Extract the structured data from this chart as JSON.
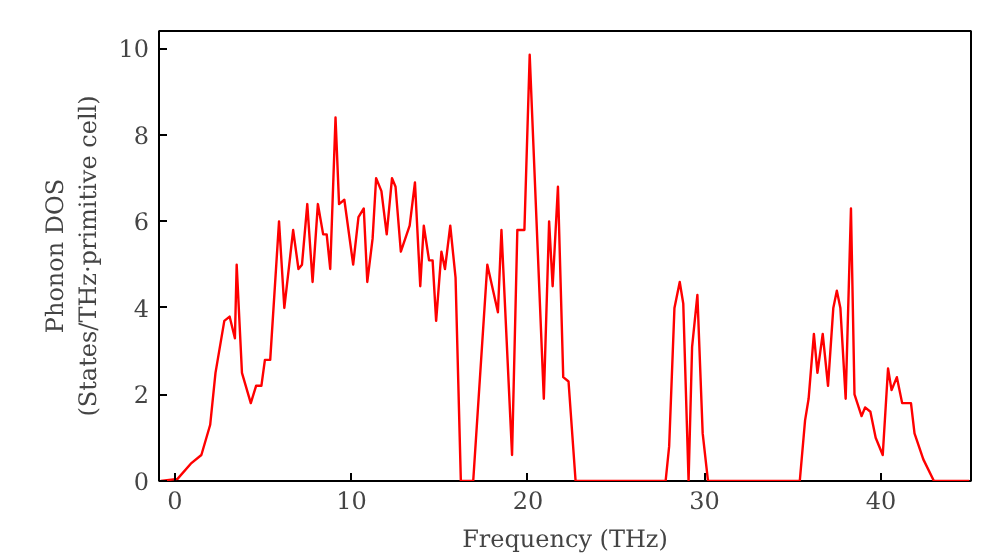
{
  "chart_data": {
    "type": "line",
    "xlabel": "Frequency (THz)",
    "ylabel": "Phonon DOS\n(States/THz·primitive cell)",
    "xlim": [
      -0.9,
      45.1
    ],
    "ylim": [
      0,
      10.4
    ],
    "xticks": [
      0,
      10,
      20,
      30,
      40
    ],
    "yticks": [
      0,
      2,
      4,
      6,
      8,
      10
    ],
    "grid": false,
    "series": [
      {
        "color": "#ff0000",
        "x": [
          -0.8,
          0.15,
          0.9,
          1.5,
          2.0,
          2.3,
          2.8,
          3.1,
          3.4,
          3.5,
          3.8,
          4.3,
          4.6,
          4.9,
          5.1,
          5.4,
          5.9,
          6.2,
          6.7,
          7.0,
          7.2,
          7.5,
          7.8,
          8.1,
          8.4,
          8.6,
          8.8,
          9.1,
          9.3,
          9.6,
          10.1,
          10.4,
          10.7,
          10.9,
          11.2,
          11.4,
          11.7,
          12.0,
          12.3,
          12.5,
          12.8,
          13.3,
          13.6,
          13.9,
          14.1,
          14.4,
          14.6,
          14.8,
          15.1,
          15.3,
          15.6,
          15.9,
          16.2,
          16.9,
          17.7,
          18.3,
          18.5,
          19.1,
          19.4,
          19.8,
          20.1,
          20.9,
          21.2,
          21.4,
          21.7,
          22.0,
          22.3,
          22.7,
          27.8,
          28.0,
          28.3,
          28.6,
          28.8,
          29.1,
          29.3,
          29.6,
          29.9,
          30.2,
          35.4,
          35.7,
          35.9,
          36.2,
          36.4,
          36.7,
          37.0,
          37.3,
          37.5,
          37.7,
          38.0,
          38.3,
          38.5,
          38.9,
          39.1,
          39.4,
          39.7,
          40.1,
          40.4,
          40.6,
          40.9,
          41.2,
          41.7,
          41.9,
          42.4,
          43.0,
          45.0
        ],
        "values": [
          0,
          0.05,
          0.4,
          0.6,
          1.3,
          2.5,
          3.7,
          3.8,
          3.3,
          5.0,
          2.5,
          1.8,
          2.2,
          2.2,
          2.8,
          2.8,
          6.0,
          4.0,
          5.8,
          4.9,
          5.0,
          6.4,
          4.6,
          6.4,
          5.7,
          5.7,
          4.9,
          8.4,
          6.4,
          6.5,
          5.0,
          6.1,
          6.3,
          4.6,
          5.6,
          7.0,
          6.7,
          5.7,
          7.0,
          6.8,
          5.3,
          5.9,
          6.9,
          4.5,
          5.9,
          5.1,
          5.1,
          3.7,
          5.3,
          4.9,
          5.9,
          4.7,
          0,
          0,
          5.0,
          3.9,
          5.8,
          0.6,
          5.8,
          5.8,
          9.85,
          1.9,
          6.0,
          4.5,
          6.8,
          2.4,
          2.3,
          0,
          0,
          0.8,
          4.0,
          4.6,
          4.1,
          0,
          3.1,
          4.3,
          1.1,
          0,
          0,
          1.4,
          1.9,
          3.4,
          2.5,
          3.4,
          2.2,
          4.0,
          4.4,
          4.0,
          1.9,
          6.3,
          2.0,
          1.5,
          1.7,
          1.6,
          1.0,
          0.6,
          2.6,
          2.1,
          2.4,
          1.8,
          1.8,
          1.1,
          0.5,
          0,
          0
        ]
      }
    ]
  }
}
